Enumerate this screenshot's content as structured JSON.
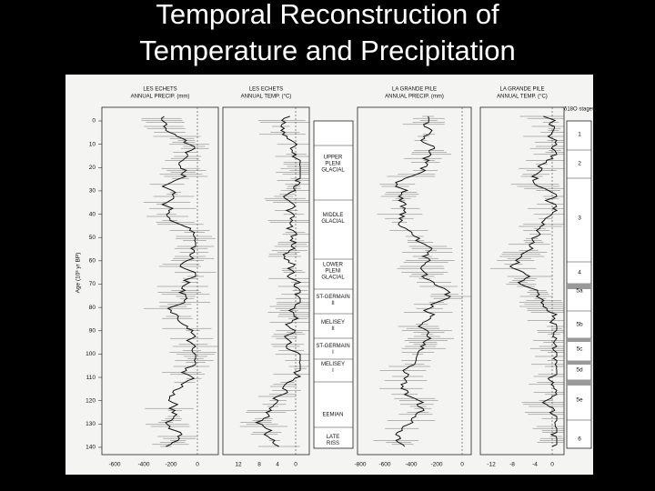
{
  "title_line1": "Temporal Reconstruction of",
  "title_line2": "Temperature and Precipitation",
  "age_axis": {
    "label": "Age (10³ yr BP)",
    "ticks": [
      "0",
      "10",
      "20",
      "30",
      "40",
      "50",
      "60",
      "70",
      "80",
      "90",
      "100",
      "110",
      "120",
      "130",
      "140"
    ]
  },
  "panels": [
    {
      "header_line1": "LES ECHETS",
      "header_line2": "ANNUAL PRECIP. (mm)",
      "ticks": [
        "-600",
        "-400",
        "-200",
        "0"
      ]
    },
    {
      "header_line1": "LES ECHETS",
      "header_line2": "ANNUAL TEMP. (°C)",
      "ticks": [
        "12",
        "8",
        "4",
        "0"
      ]
    },
    {
      "header_line1": "LA GRANDE PILE",
      "header_line2": "ANNUAL PRECIP. (mm)",
      "ticks": [
        "-800",
        "-600",
        "-400",
        "-200",
        "0"
      ]
    },
    {
      "header_line1": "LA GRANDE PILE",
      "header_line2": "ANNUAL TEMP. (°C)",
      "ticks": [
        "-12",
        "-8",
        "-4",
        "0"
      ]
    }
  ],
  "stages_header": "δ18O stages",
  "periods": [
    [
      "UPPER",
      "PLENI",
      "GLACIAL"
    ],
    [
      "MIDDLE",
      "GLACIAL"
    ],
    [
      "LOWER",
      "PLENI",
      "GLACIAL"
    ],
    [
      "ST-GERMAIN",
      "II"
    ],
    [
      "MELISEY",
      "II"
    ],
    [
      "ST-GERMAIN",
      "I"
    ],
    [
      "MELISEY",
      "I"
    ],
    [
      "EEMIAN"
    ],
    [
      "LATE",
      "RISS"
    ]
  ],
  "stages": [
    "1",
    "2",
    "3",
    "4",
    "5a",
    "5b",
    "5c",
    "5d",
    "5e",
    "6"
  ]
}
